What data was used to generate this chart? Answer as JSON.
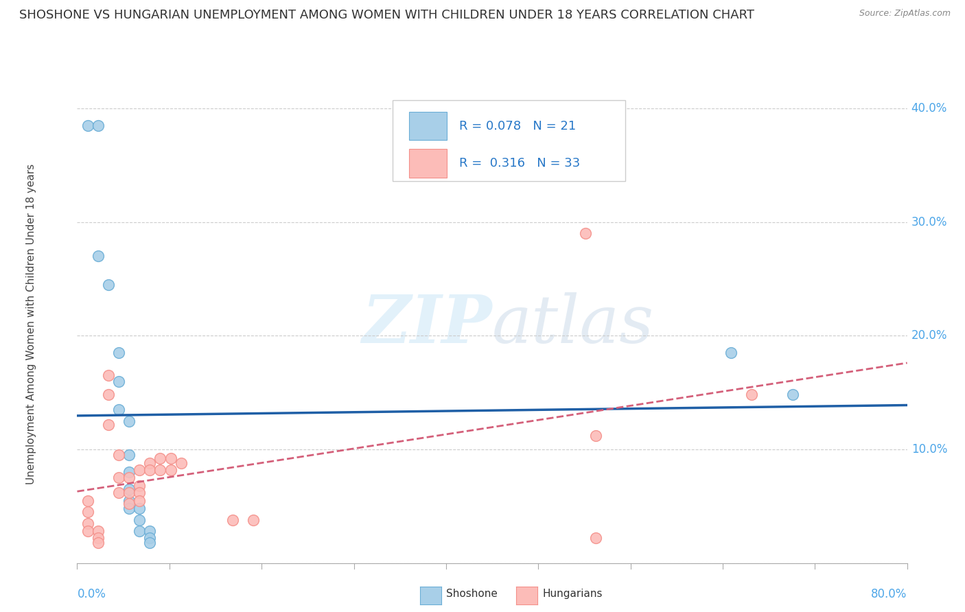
{
  "title": "SHOSHONE VS HUNGARIAN UNEMPLOYMENT AMONG WOMEN WITH CHILDREN UNDER 18 YEARS CORRELATION CHART",
  "source": "Source: ZipAtlas.com",
  "ylabel": "Unemployment Among Women with Children Under 18 years",
  "xlim": [
    0.0,
    0.8
  ],
  "ylim": [
    0.0,
    0.42
  ],
  "yticks": [
    0.0,
    0.1,
    0.2,
    0.3,
    0.4
  ],
  "ytick_labels": [
    "",
    "10.0%",
    "20.0%",
    "30.0%",
    "40.0%"
  ],
  "xtick_labels": [
    "0.0%",
    "80.0%"
  ],
  "shoshone_color": "#a8cfe8",
  "shoshone_edge": "#6baed6",
  "hungarian_color": "#fcbcb8",
  "hungarian_edge": "#f4908a",
  "trend_shoshone": "#1f5fa6",
  "trend_hungarian": "#d4607a",
  "R_shoshone": 0.078,
  "N_shoshone": 21,
  "R_hungarian": 0.316,
  "N_hungarian": 33,
  "shoshone_points": [
    [
      0.01,
      0.385
    ],
    [
      0.02,
      0.385
    ],
    [
      0.02,
      0.27
    ],
    [
      0.03,
      0.245
    ],
    [
      0.04,
      0.185
    ],
    [
      0.04,
      0.16
    ],
    [
      0.04,
      0.135
    ],
    [
      0.05,
      0.125
    ],
    [
      0.05,
      0.095
    ],
    [
      0.05,
      0.08
    ],
    [
      0.05,
      0.065
    ],
    [
      0.05,
      0.055
    ],
    [
      0.05,
      0.048
    ],
    [
      0.06,
      0.048
    ],
    [
      0.06,
      0.038
    ],
    [
      0.06,
      0.028
    ],
    [
      0.07,
      0.028
    ],
    [
      0.07,
      0.022
    ],
    [
      0.07,
      0.018
    ],
    [
      0.63,
      0.185
    ],
    [
      0.69,
      0.148
    ]
  ],
  "hungarian_points": [
    [
      0.01,
      0.055
    ],
    [
      0.01,
      0.045
    ],
    [
      0.01,
      0.035
    ],
    [
      0.01,
      0.028
    ],
    [
      0.02,
      0.028
    ],
    [
      0.02,
      0.022
    ],
    [
      0.02,
      0.018
    ],
    [
      0.03,
      0.165
    ],
    [
      0.03,
      0.148
    ],
    [
      0.03,
      0.122
    ],
    [
      0.04,
      0.095
    ],
    [
      0.04,
      0.075
    ],
    [
      0.04,
      0.062
    ],
    [
      0.05,
      0.075
    ],
    [
      0.05,
      0.062
    ],
    [
      0.05,
      0.052
    ],
    [
      0.06,
      0.082
    ],
    [
      0.06,
      0.068
    ],
    [
      0.06,
      0.062
    ],
    [
      0.06,
      0.055
    ],
    [
      0.07,
      0.088
    ],
    [
      0.07,
      0.082
    ],
    [
      0.08,
      0.092
    ],
    [
      0.08,
      0.082
    ],
    [
      0.09,
      0.092
    ],
    [
      0.09,
      0.082
    ],
    [
      0.1,
      0.088
    ],
    [
      0.15,
      0.038
    ],
    [
      0.17,
      0.038
    ],
    [
      0.49,
      0.29
    ],
    [
      0.5,
      0.112
    ],
    [
      0.5,
      0.022
    ],
    [
      0.65,
      0.148
    ]
  ],
  "background_color": "#ffffff",
  "watermark_zip": "ZIP",
  "watermark_atlas": "atlas",
  "marker_size": 130,
  "title_fontsize": 13,
  "label_fontsize": 11,
  "tick_fontsize": 12,
  "legend_fontsize": 13
}
